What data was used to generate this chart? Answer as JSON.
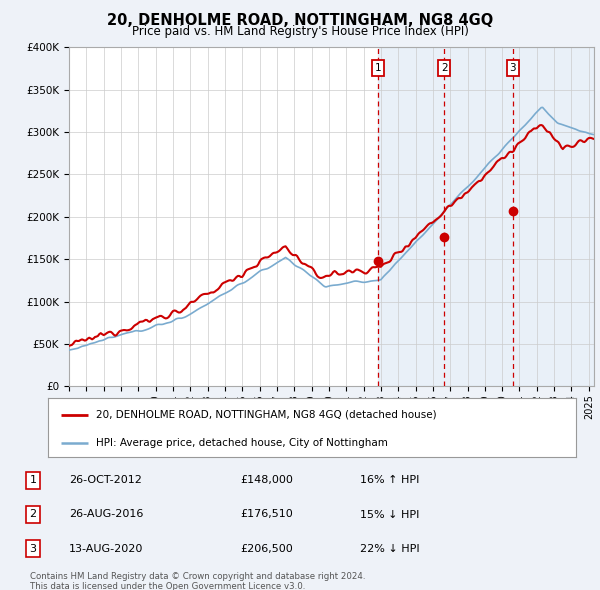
{
  "title": "20, DENHOLME ROAD, NOTTINGHAM, NG8 4GQ",
  "subtitle": "Price paid vs. HM Land Registry's House Price Index (HPI)",
  "ylabel_ticks": [
    "£0",
    "£50K",
    "£100K",
    "£150K",
    "£200K",
    "£250K",
    "£300K",
    "£350K",
    "£400K"
  ],
  "ylim": [
    0,
    400000
  ],
  "xlim_start": 1995.0,
  "xlim_end": 2025.3,
  "sale_events": [
    {
      "label": "1",
      "date": 2012.82,
      "price": 148000,
      "date_str": "26-OCT-2012",
      "price_str": "£148,000",
      "hpi_str": "16% ↑ HPI"
    },
    {
      "label": "2",
      "date": 2016.65,
      "price": 176510,
      "date_str": "26-AUG-2016",
      "price_str": "£176,510",
      "hpi_str": "15% ↓ HPI"
    },
    {
      "label": "3",
      "date": 2020.62,
      "price": 206500,
      "date_str": "13-AUG-2020",
      "price_str": "£206,500",
      "hpi_str": "22% ↓ HPI"
    }
  ],
  "legend_entries": [
    {
      "label": "20, DENHOLME ROAD, NOTTINGHAM, NG8 4GQ (detached house)",
      "color": "#cc0000",
      "lw": 1.5
    },
    {
      "label": "HPI: Average price, detached house, City of Nottingham",
      "color": "#7aabcf",
      "lw": 1.2
    }
  ],
  "footer": [
    "Contains HM Land Registry data © Crown copyright and database right 2024.",
    "This data is licensed under the Open Government Licence v3.0."
  ],
  "bg_color": "#eef2f8",
  "plot_bg": "#ffffff",
  "grid_color": "#cccccc",
  "sale_box_color": "#cc0000",
  "dashed_line_color": "#cc0000",
  "shade_color": "#d0dff0",
  "shade_alpha": 0.45
}
